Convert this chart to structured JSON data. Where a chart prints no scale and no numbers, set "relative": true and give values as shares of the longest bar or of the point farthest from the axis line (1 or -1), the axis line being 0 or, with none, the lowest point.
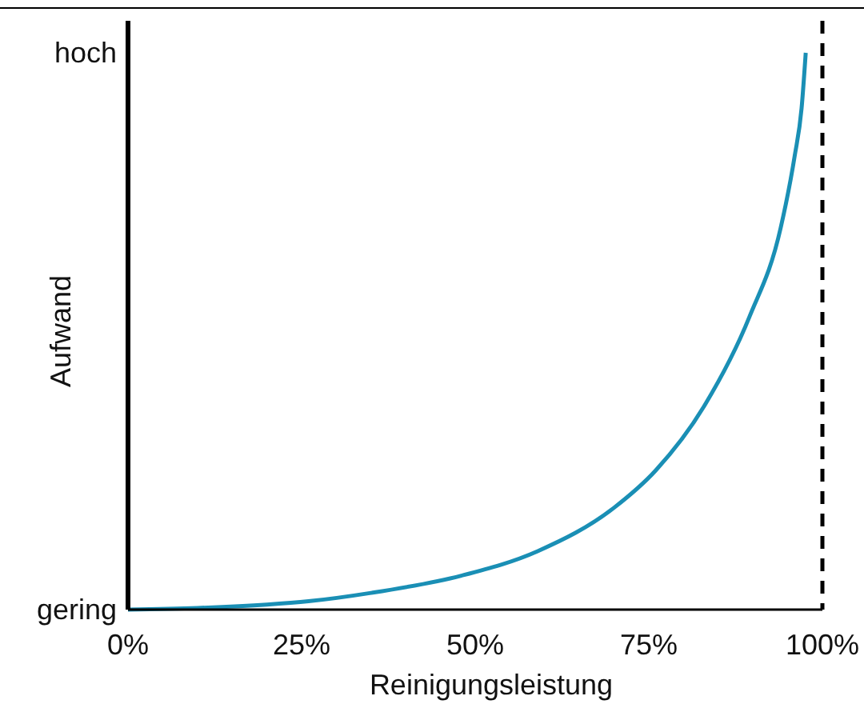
{
  "chart_data": {
    "type": "line",
    "xlabel": "Reinigungsleistung",
    "ylabel": "Aufwand",
    "x": [
      0,
      10,
      20,
      26,
      35,
      48,
      59,
      70,
      76,
      83,
      89.5,
      94,
      96,
      97,
      97.6
    ],
    "series": [
      {
        "color": "#1a8fb5",
        "values": [
          0,
          0.003,
          0.009,
          0.015,
          0.03,
          0.061,
          0.105,
          0.183,
          0.25,
          0.366,
          0.526,
          0.686,
          0.814,
          0.9,
          1
        ]
      }
    ],
    "xlim": [
      0,
      100
    ],
    "xticks": [
      {
        "value": 0,
        "label": "0%"
      },
      {
        "value": 25,
        "label": "25%"
      },
      {
        "value": 50,
        "label": "50%"
      },
      {
        "value": 75,
        "label": "75%"
      },
      {
        "value": 100,
        "label": "100%"
      }
    ],
    "relative": true,
    "annotations": [
      "gering",
      "hoch"
    ],
    "ref_lines": [
      {
        "axis": "x",
        "value": 100,
        "color": "#000000",
        "line_style": "dashed"
      }
    ],
    "grid": false,
    "marker": "none",
    "line_style": "solid"
  }
}
